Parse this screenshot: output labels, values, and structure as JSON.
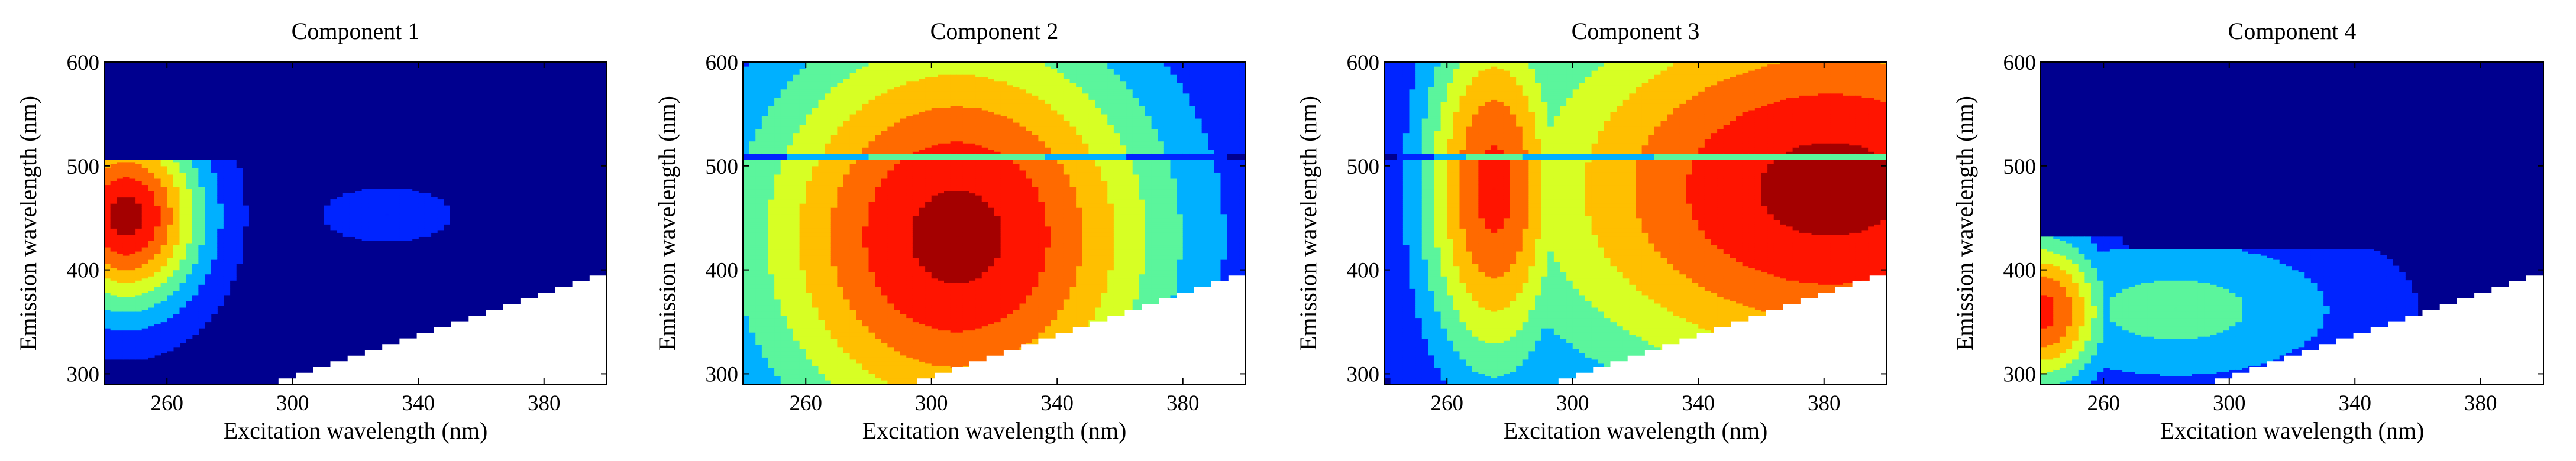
{
  "figure": {
    "background": "#ffffff",
    "plot_background": "#00008f"
  },
  "colormap": [
    "#00008f",
    "#0024ff",
    "#00b0ff",
    "#5bf59c",
    "#d7ff24",
    "#ffbf00",
    "#ff6a00",
    "#ff1400",
    "#a40000"
  ],
  "chart_data": [
    {
      "type": "heatmap",
      "title": "Component 1",
      "xlabel": "Excitation wavelength (nm)",
      "ylabel": "Emission wavelength (nm)",
      "xlim": [
        240,
        400
      ],
      "ylim": [
        290,
        600
      ],
      "xticks": [
        260,
        300,
        340,
        380
      ],
      "yticks": [
        300,
        400,
        500,
        600
      ],
      "excluded_region": {
        "description": "emission < excitation + 10",
        "from": [
          290,
          290
        ],
        "to": [
          400,
          400
        ]
      },
      "peaks": [
        {
          "ex": 247,
          "em": 452,
          "level": 8,
          "sx": 17,
          "sy": 62,
          "em_cut": 505
        },
        {
          "ex": 330,
          "em": 453,
          "level": 1,
          "sx": 22,
          "sy": 28
        }
      ]
    },
    {
      "type": "heatmap",
      "title": "Component 2",
      "xlabel": "Excitation wavelength (nm)",
      "ylabel": "Emission wavelength (nm)",
      "xlim": [
        240,
        400
      ],
      "ylim": [
        290,
        600
      ],
      "xticks": [
        260,
        300,
        340,
        380
      ],
      "yticks": [
        300,
        400,
        500,
        600
      ],
      "excluded_region": {
        "description": "emission < excitation + 10",
        "from": [
          290,
          290
        ],
        "to": [
          400,
          400
        ]
      },
      "peaks": [
        {
          "ex": 308,
          "em": 432,
          "level": 8,
          "sx": 48,
          "sy": 150,
          "scatter_seam": 505
        }
      ]
    },
    {
      "type": "heatmap",
      "title": "Component 3",
      "xlabel": "Excitation wavelength (nm)",
      "ylabel": "Emission wavelength (nm)",
      "xlim": [
        240,
        400
      ],
      "ylim": [
        290,
        600
      ],
      "xticks": [
        260,
        300,
        340,
        380
      ],
      "yticks": [
        300,
        400,
        500,
        600
      ],
      "excluded_region": {
        "description": "emission < excitation + 10",
        "from": [
          290,
          290
        ],
        "to": [
          400,
          400
        ]
      },
      "peaks": [
        {
          "ex": 275,
          "em": 478,
          "level": 7,
          "sx": 17,
          "sy": 130,
          "scatter_seam": 505
        },
        {
          "ex": 382,
          "em": 478,
          "level": 8,
          "sx": 75,
          "sy": 150,
          "scatter_seam": 505
        }
      ]
    },
    {
      "type": "heatmap",
      "title": "Component 4",
      "xlabel": "Excitation wavelength (nm)",
      "ylabel": "Emission wavelength (nm)",
      "xlim": [
        240,
        400
      ],
      "ylim": [
        290,
        600
      ],
      "xticks": [
        260,
        300,
        340,
        380
      ],
      "yticks": [
        300,
        400,
        500,
        600
      ],
      "excluded_region": {
        "description": "emission < excitation + 10",
        "from": [
          290,
          290
        ],
        "to": [
          400,
          400
        ]
      },
      "peaks": [
        {
          "ex": 240,
          "em": 360,
          "level": 7,
          "sx": 15,
          "sy": 52,
          "em_cut": 432
        },
        {
          "ex": 283,
          "em": 362,
          "level": 3,
          "sx": 44,
          "sy": 58,
          "em_cut": 420
        }
      ]
    }
  ]
}
